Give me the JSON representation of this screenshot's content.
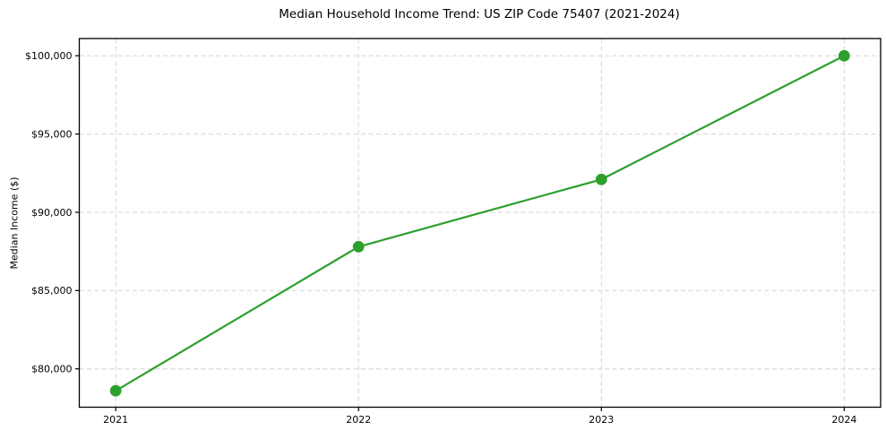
{
  "chart_data": {
    "type": "line",
    "title": "Median Household Income Trend: US ZIP Code 75407 (2021-2024)",
    "xlabel": "",
    "ylabel": "Median Income ($)",
    "x": [
      2021,
      2022,
      2023,
      2024
    ],
    "x_tick_labels": [
      "2021",
      "2022",
      "2023",
      "2024"
    ],
    "values": [
      78600,
      87800,
      92100,
      100000
    ],
    "y_ticks": [
      80000,
      85000,
      90000,
      95000,
      100000
    ],
    "y_tick_labels": [
      "$80,000",
      "$85,000",
      "$90,000",
      "$95,000",
      "$100,000"
    ],
    "xlim": [
      2020.85,
      2024.15
    ],
    "ylim": [
      77550,
      101100
    ],
    "grid": "dashed-both-axes",
    "legend": "none",
    "colors": {
      "line": "#2ca02c",
      "marker": "#2ca02c",
      "grid": "#d4d4d4",
      "spine": "#000000",
      "text": "#000000",
      "background": "#ffffff"
    },
    "marker_style": "filled-circle",
    "line_width": 2.2,
    "marker_radius": 6.4
  }
}
